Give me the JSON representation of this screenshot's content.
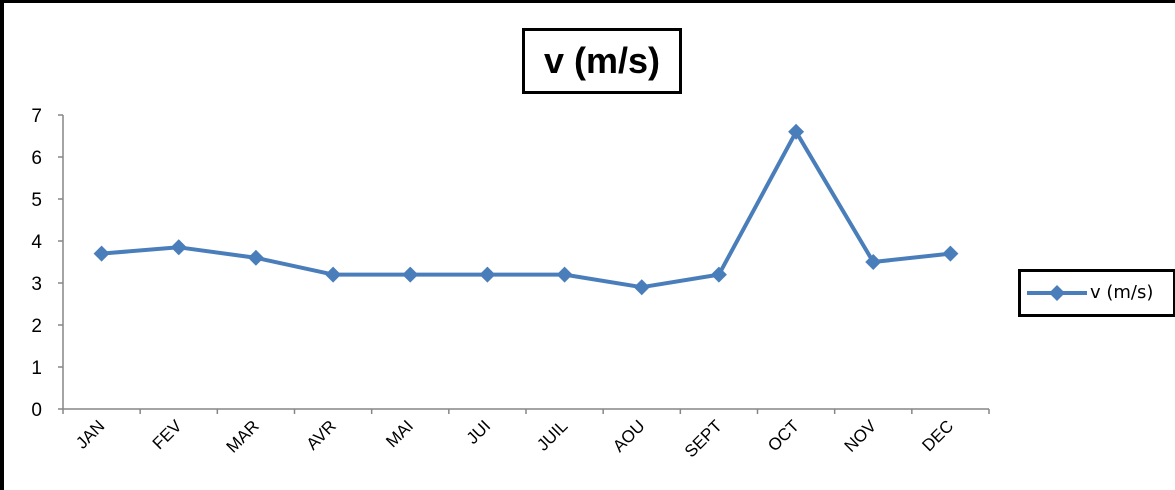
{
  "chart_data": {
    "type": "line",
    "title": "v (m/s)",
    "categories": [
      "JAN",
      "FEV",
      "MAR",
      "AVR",
      "MAI",
      "JUI",
      "JUIL",
      "AOU",
      "SEPT",
      "OCT",
      "NOV",
      "DEC"
    ],
    "series": [
      {
        "name": "v (m/s)",
        "values": [
          3.7,
          3.85,
          3.6,
          3.2,
          3.2,
          3.2,
          3.2,
          2.9,
          3.2,
          6.6,
          3.5,
          3.7
        ],
        "color": "#4a7ebb",
        "marker": "diamond"
      }
    ],
    "ylim": [
      0,
      7
    ],
    "yticks": [
      "0",
      "1",
      "2",
      "3",
      "4",
      "5",
      "6",
      "7"
    ],
    "xlabel": "",
    "ylabel": "",
    "grid": false,
    "legend": "right"
  }
}
